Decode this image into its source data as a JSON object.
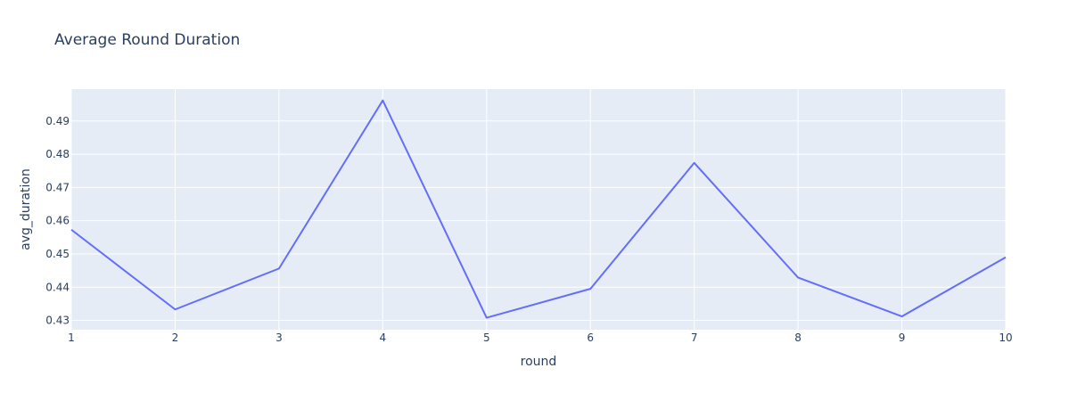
{
  "chart_data": {
    "type": "line",
    "title": "Average Round Duration",
    "xlabel": "round",
    "ylabel": "avg_duration",
    "x": [
      1,
      2,
      3,
      4,
      5,
      6,
      7,
      8,
      9,
      10
    ],
    "series": [
      {
        "values": [
          0.4573,
          0.4333,
          0.4456,
          0.4962,
          0.4308,
          0.4395,
          0.4774,
          0.4429,
          0.4312,
          0.449
        ]
      }
    ],
    "xlim": [
      1,
      10
    ],
    "ylim": [
      0.4272,
      0.4996
    ],
    "x_ticks": [
      "1",
      "2",
      "3",
      "4",
      "5",
      "6",
      "7",
      "8",
      "9",
      "10"
    ],
    "x_tick_values": [
      1,
      2,
      3,
      4,
      5,
      6,
      7,
      8,
      9,
      10
    ],
    "y_ticks": [
      "0.43",
      "0.44",
      "0.45",
      "0.46",
      "0.47",
      "0.48",
      "0.49"
    ],
    "y_tick_values": [
      0.43,
      0.44,
      0.45,
      0.46,
      0.47,
      0.48,
      0.49
    ],
    "grid": true,
    "colors": {
      "plot_background": "#e5ecf6",
      "grid": "#ffffff",
      "line": "#636efa",
      "text": "#2a3f5f"
    }
  }
}
